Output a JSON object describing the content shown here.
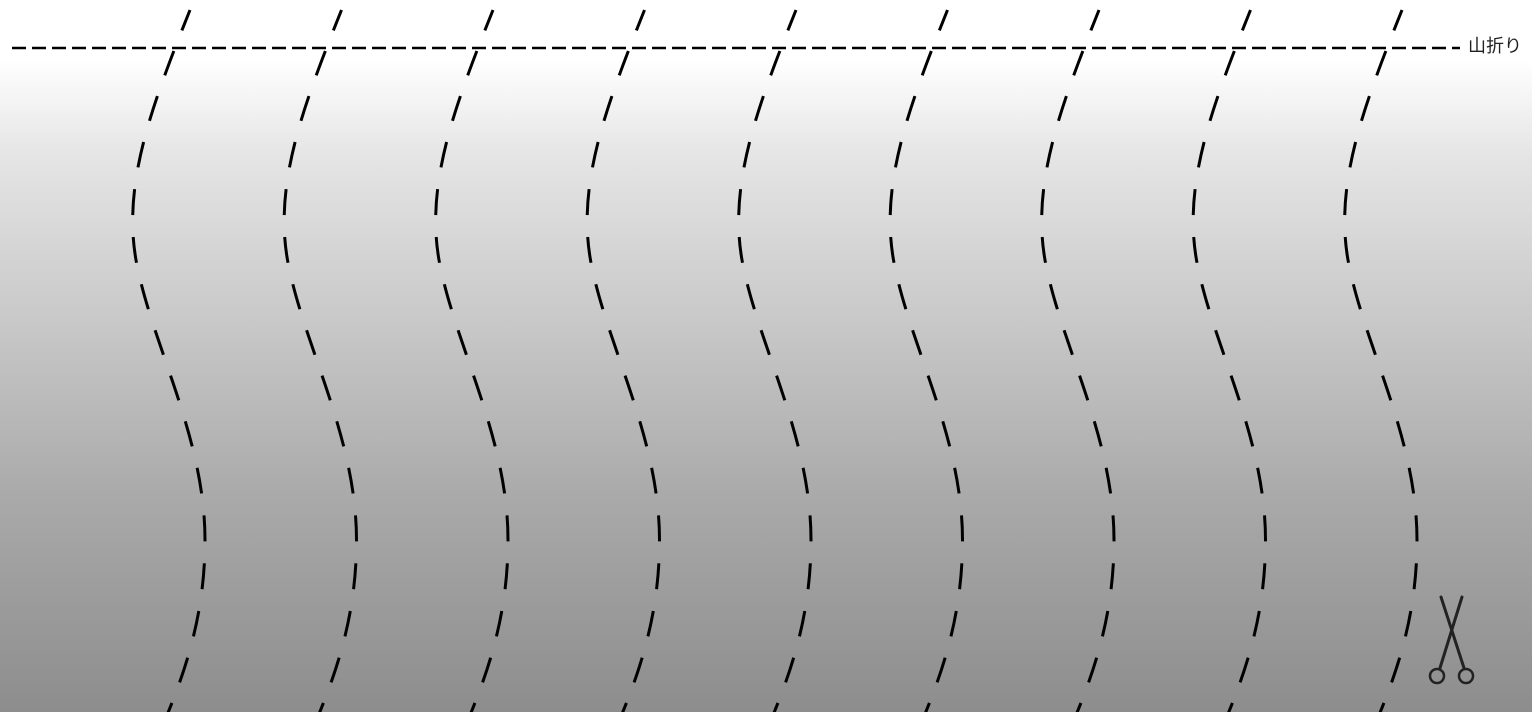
{
  "diagram": {
    "fold_line_label": "山折り",
    "cut_line_count": 9,
    "line_color": "#000000",
    "icons": {
      "scissors": "scissors-icon"
    }
  }
}
